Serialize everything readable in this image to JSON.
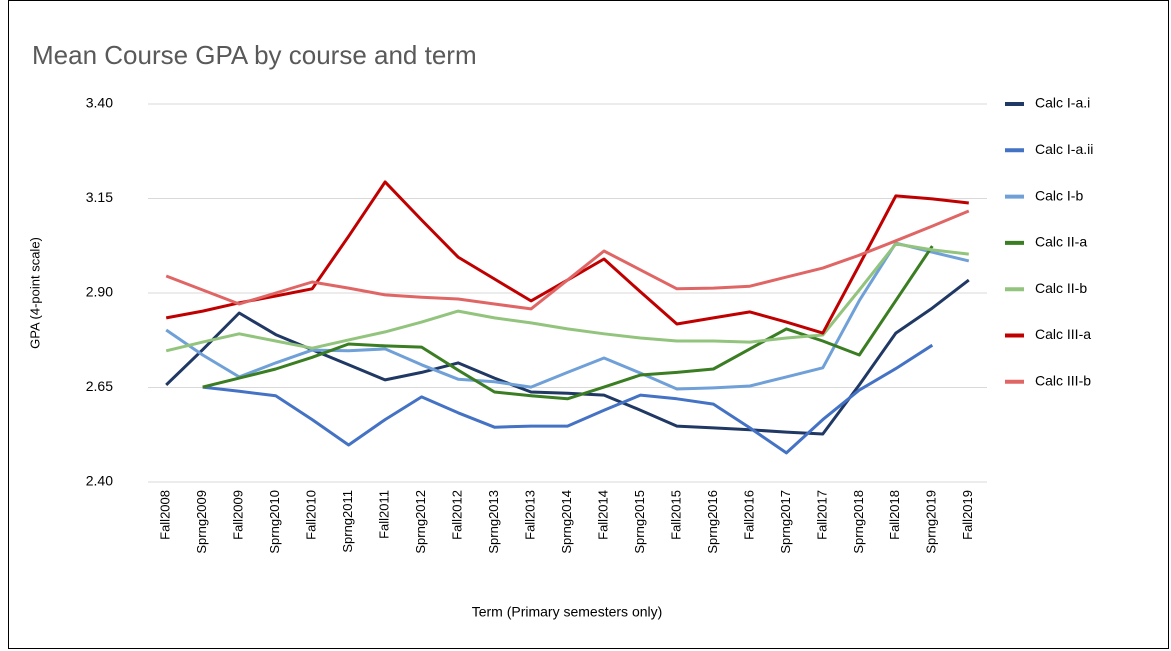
{
  "chart_data": {
    "type": "line",
    "title": "Mean Course GPA by course and term",
    "xlabel": "Term (Primary semesters only)",
    "ylabel": "GPA (4-point scale)",
    "categories": [
      "Fall2008",
      "Sprng2009",
      "Fall2009",
      "Sprng2010",
      "Fall2010",
      "Sprng2011",
      "Fall2011",
      "Sprng2012",
      "Fall2012",
      "Sprng2013",
      "Fall2013",
      "Sprng2014",
      "Fall2014",
      "Sprng2015",
      "Fall2015",
      "Sprng2016",
      "Fall2016",
      "Sprng2017",
      "Fall2017",
      "Sprng2018",
      "Fall2018",
      "Sprng2019",
      "Fall2019"
    ],
    "ylim": [
      2.4,
      3.4
    ],
    "yticks": [
      {
        "value": 2.4,
        "label": "2.40"
      },
      {
        "value": 2.65,
        "label": "2.65"
      },
      {
        "value": 2.9,
        "label": "2.90"
      },
      {
        "value": 3.15,
        "label": "3.15"
      },
      {
        "value": 3.4,
        "label": "3.40"
      }
    ],
    "grid": true,
    "legend": "right",
    "series": [
      {
        "name": "Calc I-a.i",
        "color": "#203864",
        "values": [
          2.657,
          2.75,
          2.847,
          2.79,
          2.75,
          2.71,
          2.67,
          2.69,
          2.715,
          2.675,
          2.638,
          2.635,
          2.63,
          2.59,
          2.548,
          2.543,
          2.538,
          2.532,
          2.527,
          2.657,
          2.794,
          2.86,
          2.934
        ]
      },
      {
        "name": "Calc I-a.ii",
        "color": "#4472c4",
        "values": [
          null,
          2.651,
          2.64,
          2.628,
          2.565,
          2.498,
          2.565,
          2.625,
          2.583,
          2.545,
          2.548,
          2.548,
          2.59,
          2.63,
          2.62,
          2.606,
          2.543,
          2.477,
          2.565,
          2.643,
          2.7,
          2.762,
          null
        ]
      },
      {
        "name": "Calc I-b",
        "color": "#70a0d8",
        "values": [
          2.802,
          2.736,
          2.678,
          2.715,
          2.749,
          2.747,
          2.752,
          2.71,
          2.672,
          2.665,
          2.651,
          2.69,
          2.728,
          2.688,
          2.646,
          2.649,
          2.654,
          2.678,
          2.702,
          2.88,
          3.032,
          3.008,
          2.985
        ]
      },
      {
        "name": "Calc II-a",
        "color": "#3a7d22",
        "values": [
          null,
          2.651,
          2.675,
          2.699,
          2.73,
          2.765,
          2.76,
          2.757,
          2.696,
          2.638,
          2.628,
          2.62,
          2.651,
          2.683,
          2.69,
          2.699,
          2.752,
          2.805,
          2.773,
          2.736,
          2.88,
          3.024,
          null
        ]
      },
      {
        "name": "Calc II-b",
        "color": "#93c47d",
        "values": [
          2.747,
          2.77,
          2.792,
          2.773,
          2.754,
          2.776,
          2.797,
          2.823,
          2.852,
          2.834,
          2.821,
          2.805,
          2.792,
          2.781,
          2.773,
          2.773,
          2.77,
          2.781,
          2.789,
          2.908,
          3.03,
          3.014,
          3.003
        ]
      },
      {
        "name": "Calc III-a",
        "color": "#c00000",
        "values": [
          2.834,
          2.852,
          2.874,
          2.892,
          2.911,
          3.05,
          3.194,
          3.093,
          2.995,
          2.937,
          2.879,
          2.934,
          2.99,
          2.903,
          2.818,
          2.834,
          2.85,
          2.823,
          2.794,
          2.974,
          3.157,
          3.149,
          3.138
        ]
      },
      {
        "name": "Calc III-b",
        "color": "#e06666",
        "values": [
          2.945,
          2.908,
          2.871,
          2.9,
          2.929,
          2.913,
          2.895,
          2.889,
          2.884,
          2.871,
          2.858,
          2.934,
          3.011,
          2.961,
          2.911,
          2.913,
          2.918,
          2.942,
          2.966,
          3.0,
          3.038,
          3.077,
          3.117
        ]
      }
    ]
  }
}
